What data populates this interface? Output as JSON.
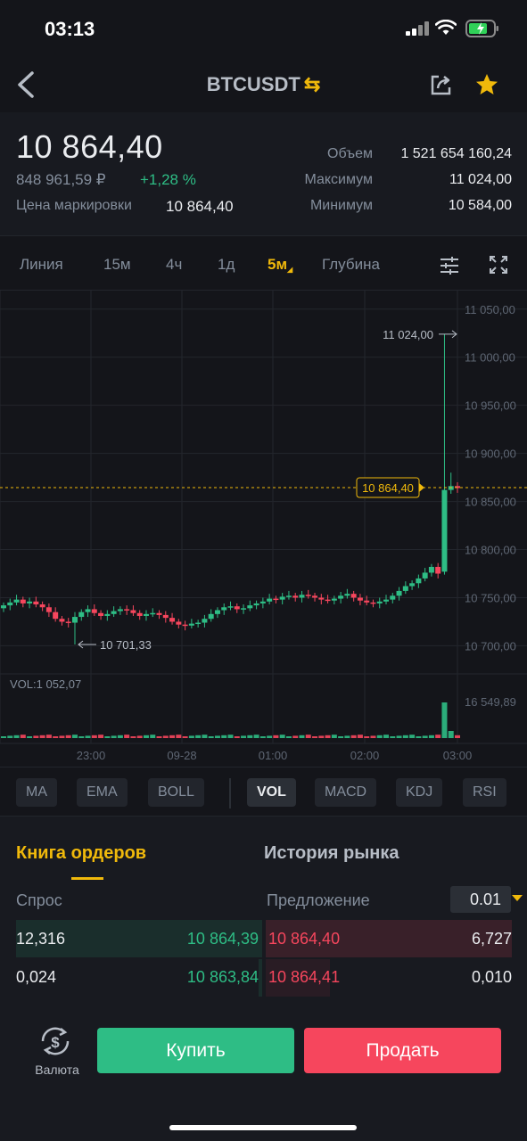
{
  "status_bar": {
    "time": "03:13"
  },
  "nav": {
    "symbol": "BTCUSDT",
    "swap_icon": "⇆"
  },
  "ticker": {
    "last_price": "10 864,40",
    "fiat_price": "848 961,59 ₽",
    "change": "+1,28 %",
    "mark_label": "Цена маркировки",
    "mark_value": "10 864,40",
    "volume_label": "Объем",
    "volume_value": "1 521 654 160,24",
    "high_label": "Максимум",
    "high_value": "11 024,00",
    "low_label": "Минимум",
    "low_value": "10 584,00"
  },
  "intervals": [
    "Линия",
    "15м",
    "4ч",
    "1д",
    "5м",
    "Глубина"
  ],
  "active_interval": "5м",
  "chart_data": {
    "type": "candlestick",
    "y_axis_labels": [
      "11 050,00",
      "11 000,00",
      "10 950,00",
      "10 900,00",
      "10 850,00",
      "10 800,00",
      "10 750,00",
      "10 700,00"
    ],
    "x_axis_labels": [
      "23:00",
      "09-28",
      "01:00",
      "02:00",
      "03:00"
    ],
    "current_price_label": "10 864,40",
    "high_marker": "11 024,00",
    "low_marker": "10 701,33",
    "volume_label": "VOL:1 052,07",
    "volume_max_label": "16 549,89",
    "ylim": [
      10680,
      11060
    ],
    "current_price": 10864.4
  },
  "indicators": [
    "MA",
    "EMA",
    "BOLL",
    "VOL",
    "MACD",
    "KDJ",
    "RSI"
  ],
  "active_indicator": "VOL",
  "tabs": {
    "order_book": "Книга ордеров",
    "market_history": "История рынка"
  },
  "book": {
    "bid_header": "Спрос",
    "ask_header": "Предложение",
    "step": "0.01",
    "rows": [
      {
        "bid_qty": "12,316",
        "bid_price": "10 864,39",
        "ask_price": "10 864,40",
        "ask_qty": "6,727"
      },
      {
        "bid_qty": "0,024",
        "bid_price": "10 863,84",
        "ask_price": "10 864,41",
        "ask_qty": "0,010"
      }
    ]
  },
  "bottom": {
    "currency_label": "Валюта",
    "buy_label": "Купить",
    "sell_label": "Продать"
  },
  "colors": {
    "up": "#2ebd85",
    "down": "#f6465d",
    "accent": "#f0b90b",
    "bg": "#14151a"
  }
}
